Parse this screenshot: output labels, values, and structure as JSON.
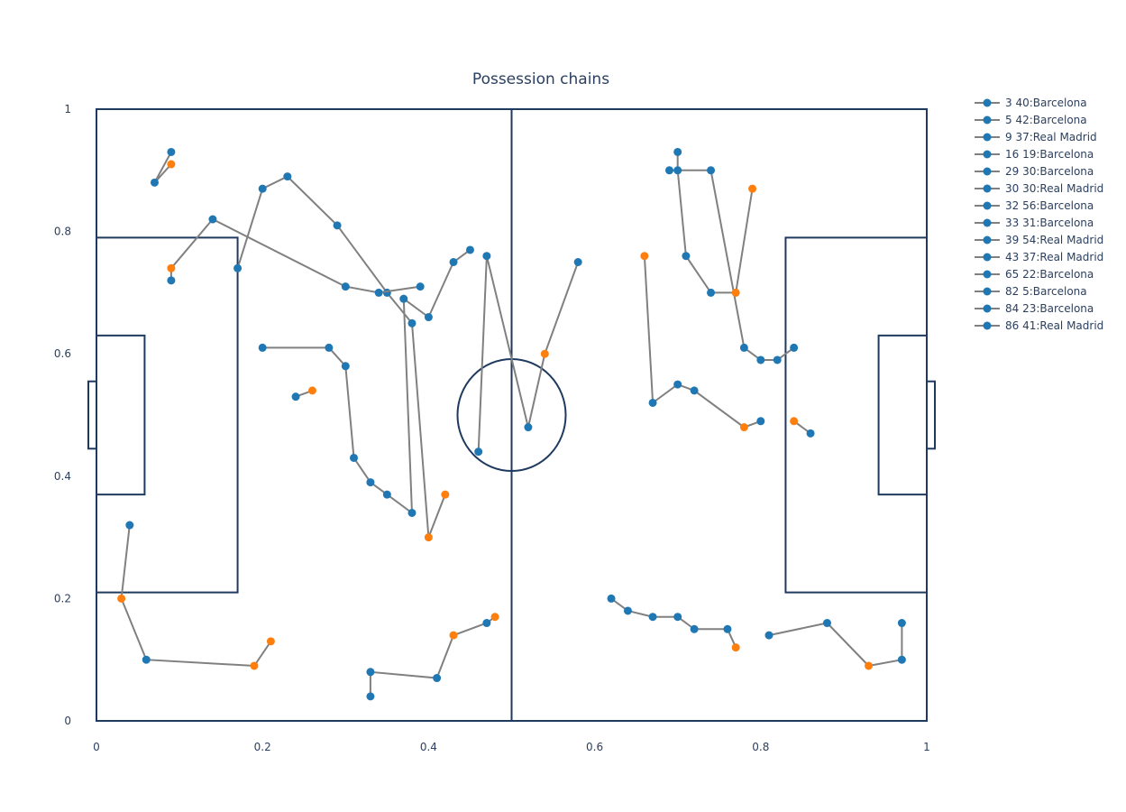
{
  "chart_data": {
    "type": "scatter",
    "title": "Possession chains",
    "xlim": [
      0,
      1
    ],
    "ylim": [
      0,
      1
    ],
    "x_ticks": [
      "0",
      "0.2",
      "0.4",
      "0.6",
      "0.8",
      "1"
    ],
    "y_ticks": [
      "0",
      "0.2",
      "0.4",
      "0.6",
      "0.8",
      "1"
    ],
    "grid": false,
    "legend_position": "top-right",
    "colors": {
      "line": "#808080",
      "pass_marker": "#1f77b4",
      "shot_marker": "#ff7f0e",
      "pitch_lines": "#1f3a5f"
    },
    "series": [
      {
        "name": "3 40:Barcelona",
        "points": [
          [
            0.2,
            0.61
          ],
          [
            0.28,
            0.61
          ],
          [
            0.3,
            0.58
          ],
          [
            0.31,
            0.43
          ],
          [
            0.33,
            0.39
          ],
          [
            0.35,
            0.37
          ],
          [
            0.38,
            0.34
          ],
          [
            0.37,
            0.69
          ],
          [
            0.4,
            0.66
          ],
          [
            0.43,
            0.75
          ],
          [
            0.45,
            0.77
          ]
        ],
        "shots": []
      },
      {
        "name": "5 42:Barcelona",
        "points": [
          [
            0.09,
            0.93
          ],
          [
            0.07,
            0.88
          ],
          [
            0.09,
            0.91
          ]
        ],
        "shots": [
          [
            0.09,
            0.91
          ]
        ]
      },
      {
        "name": "9 37:Real Madrid",
        "points": [
          [
            0.86,
            0.47
          ],
          [
            0.84,
            0.49
          ]
        ],
        "shots": [
          [
            0.84,
            0.49
          ]
        ]
      },
      {
        "name": "16 19:Barcelona",
        "points": [
          [
            0.24,
            0.53
          ],
          [
            0.26,
            0.54
          ]
        ],
        "shots": [
          [
            0.26,
            0.54
          ]
        ]
      },
      {
        "name": "29 30:Barcelona",
        "points": [
          [
            0.17,
            0.74
          ],
          [
            0.2,
            0.87
          ],
          [
            0.23,
            0.89
          ],
          [
            0.29,
            0.81
          ],
          [
            0.35,
            0.7
          ],
          [
            0.38,
            0.65
          ],
          [
            0.4,
            0.3
          ],
          [
            0.42,
            0.37
          ]
        ],
        "shots": [
          [
            0.4,
            0.3
          ],
          [
            0.42,
            0.37
          ]
        ]
      },
      {
        "name": "30 30:Real Madrid",
        "points": [
          [
            0.69,
            0.9
          ],
          [
            0.74,
            0.9
          ],
          [
            0.78,
            0.61
          ],
          [
            0.8,
            0.59
          ],
          [
            0.82,
            0.59
          ],
          [
            0.84,
            0.61
          ]
        ],
        "shots": []
      },
      {
        "name": "32 56:Barcelona",
        "points": [
          [
            0.09,
            0.72
          ],
          [
            0.09,
            0.74
          ],
          [
            0.14,
            0.82
          ],
          [
            0.3,
            0.71
          ],
          [
            0.34,
            0.7
          ],
          [
            0.39,
            0.71
          ]
        ],
        "shots": [
          [
            0.09,
            0.74
          ]
        ]
      },
      {
        "name": "33 31:Barcelona",
        "points": [
          [
            0.46,
            0.44
          ],
          [
            0.47,
            0.76
          ],
          [
            0.52,
            0.48
          ],
          [
            0.54,
            0.6
          ],
          [
            0.58,
            0.75
          ]
        ],
        "shots": [
          [
            0.54,
            0.6
          ]
        ]
      },
      {
        "name": "39 54:Real Madrid",
        "points": [
          [
            0.7,
            0.93
          ],
          [
            0.7,
            0.9
          ],
          [
            0.71,
            0.76
          ],
          [
            0.74,
            0.7
          ],
          [
            0.77,
            0.7
          ],
          [
            0.79,
            0.87
          ]
        ],
        "shots": [
          [
            0.79,
            0.87
          ],
          [
            0.77,
            0.7
          ]
        ]
      },
      {
        "name": "43 37:Real Madrid",
        "points": [
          [
            0.66,
            0.76
          ],
          [
            0.67,
            0.52
          ],
          [
            0.7,
            0.55
          ],
          [
            0.72,
            0.54
          ],
          [
            0.78,
            0.48
          ],
          [
            0.8,
            0.49
          ]
        ],
        "shots": [
          [
            0.66,
            0.76
          ],
          [
            0.78,
            0.48
          ]
        ]
      },
      {
        "name": "65 22:Barcelona",
        "points": [
          [
            0.04,
            0.32
          ],
          [
            0.03,
            0.2
          ],
          [
            0.06,
            0.1
          ],
          [
            0.19,
            0.09
          ],
          [
            0.21,
            0.13
          ]
        ],
        "shots": [
          [
            0.03,
            0.2
          ],
          [
            0.19,
            0.09
          ],
          [
            0.21,
            0.13
          ]
        ]
      },
      {
        "name": "82 5:Barcelona",
        "points": [
          [
            0.33,
            0.04
          ],
          [
            0.33,
            0.08
          ],
          [
            0.41,
            0.07
          ],
          [
            0.43,
            0.14
          ],
          [
            0.47,
            0.16
          ],
          [
            0.48,
            0.17
          ]
        ],
        "shots": [
          [
            0.43,
            0.14
          ],
          [
            0.48,
            0.17
          ]
        ]
      },
      {
        "name": "84 23:Barcelona",
        "points": [
          [
            0.62,
            0.2
          ],
          [
            0.64,
            0.18
          ],
          [
            0.67,
            0.17
          ],
          [
            0.7,
            0.17
          ],
          [
            0.72,
            0.15
          ],
          [
            0.76,
            0.15
          ],
          [
            0.77,
            0.12
          ]
        ],
        "shots": [
          [
            0.77,
            0.12
          ]
        ]
      },
      {
        "name": "86 41:Real Madrid",
        "points": [
          [
            0.81,
            0.14
          ],
          [
            0.88,
            0.16
          ],
          [
            0.93,
            0.09
          ],
          [
            0.97,
            0.1
          ],
          [
            0.97,
            0.16
          ]
        ],
        "shots": [
          [
            0.93,
            0.09
          ]
        ]
      }
    ]
  }
}
